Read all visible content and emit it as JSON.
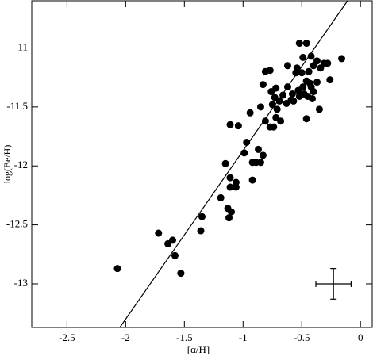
{
  "chart_data": {
    "type": "scatter",
    "xlabel": "[α/H]",
    "ylabel": "log(Be/H)",
    "xlim": [
      -2.8,
      0.1
    ],
    "ylim": [
      -13.37,
      -10.6
    ],
    "xticks": [
      -2.5,
      -2,
      -1.5,
      -1,
      -0.5,
      0
    ],
    "yticks": [
      -11,
      -11.5,
      -12,
      -12.5,
      -13
    ],
    "color": "#000000",
    "x": [
      -2.07,
      -1.72,
      -1.6,
      -1.64,
      -1.58,
      -1.53,
      -1.36,
      -1.35,
      -1.12,
      -1.1,
      -1.13,
      -1.19,
      -1.11,
      -1.06,
      -1.06,
      -1.11,
      -1.15,
      -1.11,
      -1.04,
      -0.99,
      -0.97,
      -0.92,
      -0.92,
      -0.89,
      -0.85,
      -0.87,
      -0.83,
      -0.94,
      -0.85,
      -0.81,
      -0.83,
      -0.81,
      -0.77,
      -0.76,
      -0.75,
      -0.73,
      -0.72,
      -0.71,
      -0.72,
      -0.77,
      -0.74,
      -0.68,
      -0.69,
      -0.66,
      -0.63,
      -0.59,
      -0.62,
      -0.62,
      -0.58,
      -0.57,
      -0.54,
      -0.53,
      -0.55,
      -0.5,
      -0.52,
      -0.46,
      -0.49,
      -0.49,
      -0.48,
      -0.46,
      -0.45,
      -0.44,
      -0.43,
      -0.42,
      -0.4,
      -0.46,
      -0.52,
      -0.41,
      -0.37,
      -0.4,
      -0.42,
      -0.37,
      -0.34,
      -0.35,
      -0.28,
      -0.26,
      -0.16,
      -0.31
    ],
    "values": [
      -12.87,
      -12.57,
      -12.63,
      -12.66,
      -12.76,
      -12.91,
      -12.55,
      -12.43,
      -12.44,
      -12.39,
      -12.36,
      -12.27,
      -12.18,
      -12.18,
      -12.14,
      -12.1,
      -11.98,
      -11.65,
      -11.66,
      -11.89,
      -11.8,
      -12.12,
      -11.97,
      -11.97,
      -11.97,
      -11.86,
      -11.91,
      -11.55,
      -11.5,
      -11.62,
      -11.31,
      -11.2,
      -11.19,
      -11.37,
      -11.48,
      -11.42,
      -11.34,
      -11.52,
      -11.59,
      -11.67,
      -11.67,
      -11.62,
      -11.45,
      -11.4,
      -11.47,
      -11.44,
      -11.33,
      -11.15,
      -11.39,
      -11.45,
      -11.17,
      -11.36,
      -11.21,
      -11.21,
      -10.96,
      -10.96,
      -11.08,
      -11.33,
      -11.39,
      -11.28,
      -11.41,
      -11.2,
      -11.3,
      -11.33,
      -11.37,
      -11.6,
      -11.41,
      -11.43,
      -11.29,
      -11.15,
      -11.07,
      -11.11,
      -11.17,
      -11.52,
      -11.13,
      -11.27,
      -11.09,
      -11.13
    ],
    "fit": {
      "x": [
        -2.05,
        -0.11
      ],
      "y": [
        -13.37,
        -10.6
      ]
    },
    "error_bar": {
      "x": -0.23,
      "y": -13.0,
      "xerr": 0.15,
      "yerr": 0.13
    }
  }
}
